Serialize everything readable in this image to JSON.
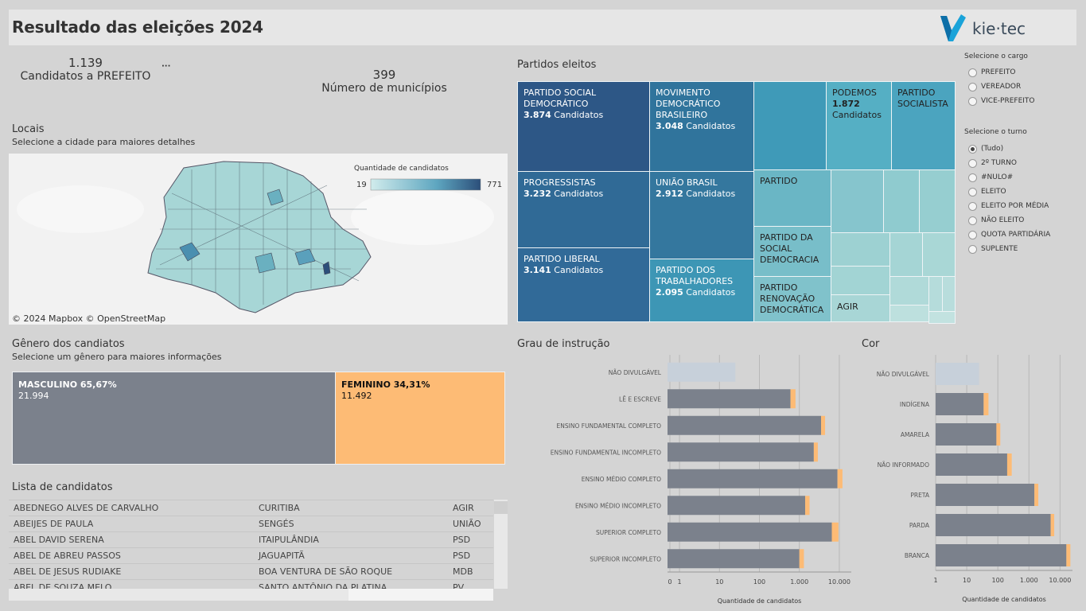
{
  "header": {
    "title": "Resultado das eleições 2024",
    "logo_text": "kie·tec"
  },
  "kpis": {
    "candidates_value": "1.139",
    "candidates_label": "Candidatos a PREFEITO",
    "municipalities_value": "399",
    "municipalities_label": "Número de municípios",
    "ellipsis": "···"
  },
  "map": {
    "title": "Locais",
    "subtitle": "Selecione a cidade para maiores detalhes",
    "legend_title": "Quantidade de candidatos",
    "legend_min": "19",
    "legend_max": "771",
    "credit": "© 2024 Mapbox  © OpenStreetMap"
  },
  "treemap": {
    "title": "Partidos eleitos",
    "cells": [
      {
        "name": "PARTIDO SOCIAL DEMOCRÁTICO",
        "value": "3.874",
        "unit": "Candidatos"
      },
      {
        "name": "MOVIMENTO DEMOCRÁTICO BRASILEIRO",
        "value": "3.048",
        "unit": "Candidatos"
      },
      {
        "name": "PODEMOS",
        "value": "1.872",
        "unit": "Candidatos"
      },
      {
        "name": "PARTIDO SOCIALISTA",
        "value": "",
        "unit": ""
      },
      {
        "name": "PROGRESSISTAS",
        "value": "3.232",
        "unit": "Candidatos"
      },
      {
        "name": "UNIÃO BRASIL",
        "value": "2.912",
        "unit": "Candidatos"
      },
      {
        "name": "PARTIDO",
        "value": "",
        "unit": ""
      },
      {
        "name": "PARTIDO DA SOCIAL DEMOCRACIA",
        "value": "",
        "unit": ""
      },
      {
        "name": "PARTIDO LIBERAL",
        "value": "3.141",
        "unit": "Candidatos"
      },
      {
        "name": "PARTIDO DOS TRABALHADORES",
        "value": "2.095",
        "unit": "Candidatos"
      },
      {
        "name": "PARTIDO RENOVAÇÃO DEMOCRÁTICA",
        "value": "",
        "unit": ""
      },
      {
        "name": "AGIR",
        "value": "",
        "unit": ""
      }
    ]
  },
  "filters": {
    "cargo_title": "Selecione o cargo",
    "cargo_options": [
      "PREFEITO",
      "VEREADOR",
      "VICE-PREFEITO"
    ],
    "turno_title": "Selecione o turno",
    "turno_options": [
      "(Tudo)",
      "2º TURNO",
      "#NULO#",
      "ELEITO",
      "ELEITO POR MÉDIA",
      "NÃO ELEITO",
      "QUOTA PARTIDÁRIA",
      "SUPLENTE"
    ],
    "turno_selected": "(Tudo)"
  },
  "gender": {
    "title": "Gênero dos candiatos",
    "subtitle": "Selecione um gênero para maiores informações",
    "male_label": "MASCULINO 65,67%",
    "male_value": "21.994",
    "female_label": "FEMININO 34,31%",
    "female_value": "11.492",
    "colors": {
      "male": "#7b818c",
      "female": "#fdbb75"
    }
  },
  "candidates_list": {
    "title": "Lista de candidatos",
    "rows": [
      [
        "ABEDNEGO ALVES DE CARVALHO",
        "CURITIBA",
        "AGIR"
      ],
      [
        "ABEIJES DE PAULA",
        "SENGÉS",
        "UNIÃO"
      ],
      [
        "ABEL DAVID SERENA",
        "ITAIPULÂNDIA",
        "PSD"
      ],
      [
        "ABEL DE ABREU PASSOS",
        "JAGUAPITÃ",
        "PSD"
      ],
      [
        "ABEL DE JESUS RUDIAKE",
        "BOA VENTURA DE SÃO ROQUE",
        "MDB"
      ],
      [
        "ABEL DE SOUZA MELO",
        "SANTO ANTÔNIO DA PLATINA",
        "PV"
      ]
    ]
  },
  "chart_data": [
    {
      "type": "bar",
      "title": "Grau de instrução",
      "xlabel": "Quantidade de candidatos",
      "scale": "log",
      "ticks": [
        "0",
        "1",
        "10",
        "100",
        "1.000",
        "10.000"
      ],
      "categories": [
        "NÃO DIVULGÁVEL",
        "LÊ E ESCREVE",
        "ENSINO FUNDAMENTAL COMPLETO",
        "ENSINO FUNDAMENTAL INCOMPLETO",
        "ENSINO MÉDIO COMPLETO",
        "ENSINO MÉDIO INCOMPLETO",
        "SUPERIOR COMPLETO",
        "SUPERIOR INCOMPLETO"
      ],
      "series": [
        {
          "values": [
            25,
            600,
            3500,
            2300,
            9000,
            1400,
            6500,
            1000
          ]
        },
        {
          "values": [
            0,
            200,
            900,
            600,
            3000,
            400,
            3000,
            300
          ]
        }
      ]
    },
    {
      "type": "bar",
      "title": "Cor",
      "xlabel": "Quantidade de candidatos",
      "scale": "log",
      "ticks": [
        "1",
        "10",
        "100",
        "1.000",
        "10.000"
      ],
      "categories": [
        "NÃO DIVULGÁVEL",
        "INDÍGENA",
        "AMARELA",
        "NÃO INFORMADO",
        "PRETA",
        "PARDA",
        "BRANCA"
      ],
      "series": [
        {
          "values": [
            25,
            35,
            90,
            200,
            1500,
            5000,
            16000
          ]
        },
        {
          "values": [
            0,
            15,
            30,
            80,
            500,
            1500,
            5500
          ]
        }
      ]
    }
  ]
}
